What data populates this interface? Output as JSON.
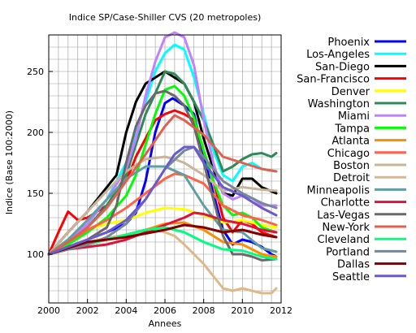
{
  "chart_data": {
    "type": "line",
    "title": "Indice SP/Case-Shiller CVS (20 metropoles)",
    "xlabel": "Annees",
    "ylabel": "Indice (Base 100:2000)",
    "xlim": [
      2000,
      2012
    ],
    "ylim": [
      60,
      280
    ],
    "xticks": [
      2000,
      2002,
      2004,
      2006,
      2008,
      2010,
      2012
    ],
    "yticks": [
      100,
      150,
      200,
      250
    ],
    "xtick_labels": [
      "2000",
      "2002",
      "2004",
      "2006",
      "2008",
      "2010",
      "2012"
    ],
    "ytick_labels": [
      "100",
      "150",
      "200",
      "250"
    ],
    "grid": true,
    "legend_position": "right",
    "series": [
      {
        "name": "Phoenix",
        "color": "#0000ff",
        "x": [
          2000,
          2001,
          2002,
          2003,
          2004,
          2004.5,
          2005,
          2005.5,
          2006,
          2006.4,
          2007,
          2007.5,
          2008,
          2008.5,
          2009,
          2009.5,
          2010,
          2010.5,
          2011,
          2011.5,
          2011.75
        ],
        "y": [
          100,
          106,
          112,
          118,
          125,
          134,
          160,
          200,
          224,
          228,
          222,
          215,
          180,
          150,
          120,
          108,
          112,
          110,
          106,
          100,
          98
        ]
      },
      {
        "name": "Los-Angeles",
        "color": "#00ffff",
        "x": [
          2000,
          2001,
          2002,
          2003,
          2004,
          2004.5,
          2005,
          2005.5,
          2006,
          2006.5,
          2007,
          2007.5,
          2008,
          2008.5,
          2009,
          2009.5,
          2010,
          2010.5,
          2011,
          2011.75
        ],
        "y": [
          100,
          110,
          125,
          145,
          175,
          200,
          225,
          250,
          265,
          272,
          268,
          245,
          215,
          185,
          165,
          160,
          172,
          175,
          170,
          168
        ]
      },
      {
        "name": "San-Diego",
        "color": "#000000",
        "x": [
          2000,
          2001,
          2002,
          2003,
          2003.5,
          2004,
          2004.5,
          2005,
          2005.5,
          2006,
          2006.5,
          2007,
          2007.5,
          2008,
          2008.5,
          2009,
          2009.5,
          2010,
          2010.5,
          2011,
          2011.75
        ],
        "y": [
          100,
          118,
          135,
          155,
          165,
          200,
          225,
          240,
          245,
          250,
          245,
          240,
          225,
          195,
          170,
          150,
          148,
          162,
          162,
          155,
          150
        ]
      },
      {
        "name": "San-Francisco",
        "color": "#ff0000",
        "x": [
          2000,
          2000.5,
          2001,
          2001.5,
          2002,
          2003,
          2004,
          2004.5,
          2005,
          2005.5,
          2006,
          2006.5,
          2007,
          2007.5,
          2008,
          2008.5,
          2009,
          2009.5,
          2010,
          2010.5,
          2011,
          2011.75
        ],
        "y": [
          100,
          118,
          135,
          128,
          130,
          140,
          160,
          180,
          195,
          210,
          215,
          218,
          215,
          210,
          185,
          160,
          130,
          118,
          128,
          125,
          118,
          114
        ]
      },
      {
        "name": "Denver",
        "color": "#ffff00",
        "x": [
          2000,
          2001,
          2002,
          2003,
          2004,
          2005,
          2006,
          2007,
          2008,
          2009,
          2010,
          2011,
          2011.75
        ],
        "y": [
          100,
          112,
          120,
          125,
          128,
          134,
          138,
          137,
          132,
          126,
          128,
          124,
          122
        ]
      },
      {
        "name": "Washington",
        "color": "#2e8b57",
        "x": [
          2000,
          2001,
          2002,
          2003,
          2004,
          2004.5,
          2005,
          2005.5,
          2006,
          2006.5,
          2007,
          2007.5,
          2008,
          2008.5,
          2009,
          2009.5,
          2010,
          2010.5,
          2011,
          2011.5,
          2011.75
        ],
        "y": [
          100,
          110,
          122,
          140,
          165,
          190,
          215,
          232,
          250,
          248,
          240,
          225,
          210,
          190,
          168,
          172,
          178,
          182,
          183,
          180,
          183
        ]
      },
      {
        "name": "Miami",
        "color": "#c080ff",
        "x": [
          2000,
          2001,
          2002,
          2003,
          2004,
          2004.5,
          2005,
          2005.5,
          2006,
          2006.5,
          2007,
          2007.5,
          2008,
          2008.5,
          2009,
          2009.5,
          2010,
          2010.5,
          2011,
          2011.75
        ],
        "y": [
          100,
          110,
          125,
          145,
          170,
          195,
          230,
          258,
          278,
          282,
          278,
          255,
          210,
          175,
          150,
          145,
          148,
          146,
          140,
          140
        ]
      },
      {
        "name": "Tampa",
        "color": "#00ff00",
        "x": [
          2000,
          2001,
          2002,
          2003,
          2004,
          2004.5,
          2005,
          2005.5,
          2006,
          2006.5,
          2007,
          2007.5,
          2008,
          2008.5,
          2009,
          2009.5,
          2010,
          2010.5,
          2011,
          2011.75
        ],
        "y": [
          100,
          108,
          118,
          130,
          148,
          165,
          190,
          215,
          235,
          238,
          230,
          212,
          185,
          160,
          140,
          132,
          134,
          130,
          122,
          118
        ]
      },
      {
        "name": "Atlanta",
        "color": "#ff8c00",
        "x": [
          2000,
          2001,
          2002,
          2003,
          2004,
          2005,
          2006,
          2007,
          2008,
          2009,
          2010,
          2011,
          2011.75
        ],
        "y": [
          100,
          105,
          110,
          113,
          116,
          120,
          125,
          126,
          120,
          110,
          108,
          100,
          98
        ]
      },
      {
        "name": "Chicago",
        "color": "#ff6347",
        "x": [
          2000,
          2001,
          2002,
          2003,
          2004,
          2005,
          2006,
          2006.5,
          2007,
          2008,
          2009,
          2010,
          2011,
          2011.75
        ],
        "y": [
          100,
          110,
          120,
          128,
          138,
          150,
          162,
          166,
          165,
          158,
          140,
          132,
          128,
          124
        ]
      },
      {
        "name": "Boston",
        "color": "#c8b497",
        "x": [
          2000,
          2001,
          2002,
          2003,
          2004,
          2005,
          2006,
          2006.5,
          2007,
          2008,
          2009,
          2010,
          2011,
          2011.75
        ],
        "y": [
          100,
          118,
          135,
          152,
          168,
          178,
          180,
          178,
          175,
          165,
          152,
          155,
          153,
          152
        ]
      },
      {
        "name": "Detroit",
        "color": "#deb887",
        "x": [
          2000,
          2001,
          2002,
          2003,
          2004,
          2005,
          2005.5,
          2006,
          2006.5,
          2007,
          2007.5,
          2008,
          2008.5,
          2009,
          2009.5,
          2010,
          2010.5,
          2011,
          2011.5,
          2011.75
        ],
        "y": [
          100,
          105,
          110,
          113,
          116,
          118,
          120,
          118,
          115,
          108,
          100,
          92,
          82,
          72,
          70,
          72,
          70,
          68,
          68,
          72
        ]
      },
      {
        "name": "Minneapolis",
        "color": "#5f9ea0",
        "x": [
          2000,
          2001,
          2002,
          2003,
          2004,
          2005,
          2006,
          2007,
          2008,
          2009,
          2010,
          2011,
          2011.75
        ],
        "y": [
          100,
          112,
          128,
          145,
          162,
          172,
          172,
          165,
          140,
          120,
          118,
          105,
          102
        ]
      },
      {
        "name": "Charlotte",
        "color": "#dc143c",
        "x": [
          2000,
          2001,
          2002,
          2003,
          2004,
          2005,
          2006,
          2007,
          2007.5,
          2008,
          2009,
          2010,
          2011,
          2011.75
        ],
        "y": [
          100,
          104,
          106,
          108,
          112,
          118,
          124,
          130,
          134,
          133,
          128,
          125,
          120,
          118
        ]
      },
      {
        "name": "Las-Vegas",
        "color": "#696969",
        "x": [
          2000,
          2001,
          2002,
          2003,
          2003.5,
          2004,
          2004.5,
          2005,
          2005.5,
          2006,
          2006.5,
          2007,
          2007.5,
          2008,
          2008.5,
          2009,
          2009.5,
          2010,
          2010.5,
          2011,
          2011.75
        ],
        "y": [
          100,
          106,
          112,
          122,
          140,
          175,
          205,
          222,
          232,
          234,
          230,
          222,
          205,
          175,
          145,
          115,
          100,
          100,
          98,
          95,
          96
        ]
      },
      {
        "name": "New-York",
        "color": "#e06050",
        "x": [
          2000,
          2001,
          2002,
          2003,
          2004,
          2005,
          2006,
          2006.5,
          2007,
          2008,
          2009,
          2010,
          2011,
          2011.75
        ],
        "y": [
          100,
          110,
          122,
          138,
          160,
          182,
          205,
          214,
          210,
          198,
          180,
          175,
          170,
          168
        ]
      },
      {
        "name": "Cleveland",
        "color": "#00ff7f",
        "x": [
          2000,
          2001,
          2002,
          2003,
          2004,
          2005,
          2006,
          2007,
          2008,
          2009,
          2010,
          2011,
          2011.75
        ],
        "y": [
          100,
          104,
          108,
          112,
          116,
          120,
          122,
          118,
          110,
          104,
          103,
          98,
          96
        ]
      },
      {
        "name": "Portland",
        "color": "#778899",
        "x": [
          2000,
          2001,
          2002,
          2003,
          2004,
          2005,
          2006,
          2007,
          2007.5,
          2008,
          2009,
          2010,
          2011,
          2011.75
        ],
        "y": [
          100,
          104,
          108,
          114,
          125,
          145,
          170,
          185,
          188,
          180,
          160,
          150,
          142,
          138
        ]
      },
      {
        "name": "Dallas",
        "color": "#800000",
        "x": [
          2000,
          2001,
          2002,
          2003,
          2004,
          2005,
          2006,
          2007,
          2008,
          2009,
          2010,
          2011,
          2011.75
        ],
        "y": [
          100,
          105,
          110,
          112,
          114,
          117,
          120,
          124,
          122,
          118,
          120,
          116,
          114
        ]
      },
      {
        "name": "Seattle",
        "color": "#6a5acd",
        "x": [
          2000,
          2001,
          2002,
          2003,
          2004,
          2005,
          2006,
          2006.5,
          2007,
          2007.5,
          2008,
          2009,
          2010,
          2011,
          2011.75
        ],
        "y": [
          100,
          106,
          112,
          118,
          128,
          145,
          170,
          182,
          188,
          188,
          175,
          155,
          148,
          138,
          132
        ]
      }
    ]
  }
}
